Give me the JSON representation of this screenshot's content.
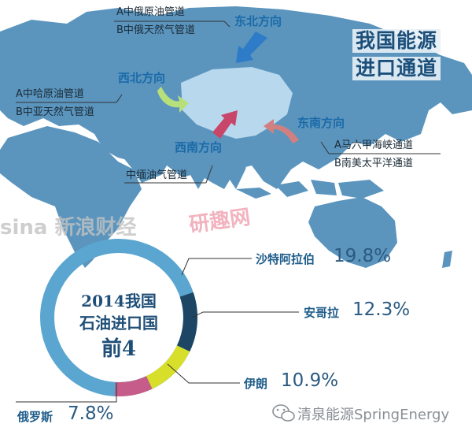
{
  "title": {
    "line1": "我国能源",
    "line2": "进口通道"
  },
  "directions": {
    "northeast": {
      "label": "东北方向",
      "routes": [
        "A中俄原油管道",
        "B中俄天然气管道"
      ]
    },
    "northwest": {
      "label": "西北方向",
      "routes": [
        "A中哈原油管道",
        "B中亚天然气管道"
      ]
    },
    "southwest": {
      "label": "西南方向",
      "routes": [
        "中缅油气管道"
      ]
    },
    "southeast": {
      "label": "东南方向",
      "routes": [
        "A马六甲海峡通道",
        "B南美太平洋通道"
      ]
    }
  },
  "donut": {
    "center_lines": [
      "2014我国",
      "石油进口国",
      "前4"
    ]
  },
  "chart_data": {
    "type": "pie",
    "title": "2014我国石油进口国前4",
    "categories": [
      "沙特阿拉伯",
      "安哥拉",
      "伊朗",
      "俄罗斯"
    ],
    "values": [
      19.8,
      12.3,
      10.9,
      7.8
    ],
    "value_labels": [
      "19.8%",
      "12.3%",
      "10.9%",
      "7.8%"
    ],
    "colors": [
      "#5aa6d0",
      "#1d4664",
      "#d8df2a",
      "#c65c8a"
    ]
  },
  "watermarks": {
    "sina": "sina 新浪财经",
    "yanqu": "研趣网"
  },
  "footer": {
    "credit": "清泉能源SpringEnergy"
  },
  "colors": {
    "ocean": "#ffffff",
    "land": "#5b95be",
    "china": "#b8d8ee",
    "donut_base": "#5aa6d0"
  }
}
